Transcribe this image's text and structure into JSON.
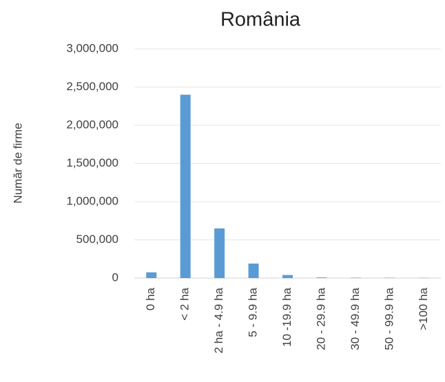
{
  "chart_data": {
    "type": "bar",
    "title": "România",
    "y_label": "Număr de firme",
    "categories": [
      "0 ha",
      "< 2 ha",
      "2 ha - 4.9 ha",
      "5 - 9.9 ha",
      "10 -19.9 ha",
      "20 - 29.9 ha",
      "30 - 49.9 ha",
      "50 - 99.9 ha",
      ">100 ha"
    ],
    "values": [
      75000,
      2400000,
      650000,
      190000,
      40000,
      8000,
      5000,
      4000,
      3000
    ],
    "color": "#5b9bd5",
    "ylim": [
      0,
      3000000
    ],
    "yticks": [
      0,
      {
        "value": 500000,
        "label": "500,000"
      },
      {
        "value": 1000000,
        "label": "1,000,000"
      },
      {
        "value": 1500000,
        "label": "1,500,000"
      },
      {
        "value": 2000000,
        "label": "2,000,000"
      },
      {
        "value": 2500000,
        "label": "2,500,000"
      },
      {
        "value": 3000000,
        "label": "3,000,000"
      }
    ],
    "grid": true
  }
}
